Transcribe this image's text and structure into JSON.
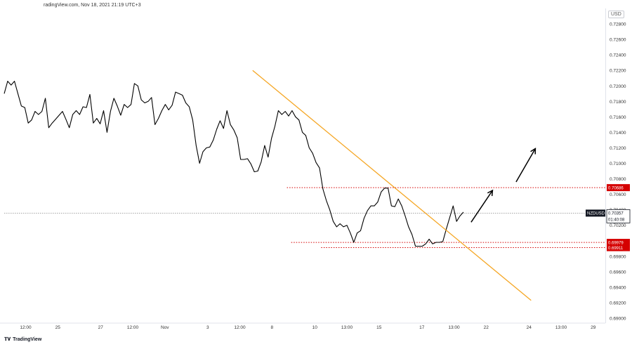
{
  "header": {
    "source_text": "radingView.com, Nov 18, 2021 21:19 UTC+3"
  },
  "footer": {
    "brand": "TradingView",
    "logo": "tradingview-logo-icon"
  },
  "chart_data": {
    "type": "line",
    "currency": "USD",
    "symbol_label": "NZDUSD",
    "current_price": "0.70357",
    "countdown": "01:40:08",
    "y_ticks": [
      0.728,
      0.726,
      0.724,
      0.722,
      0.72,
      0.718,
      0.716,
      0.714,
      0.712,
      0.71,
      0.708,
      0.706,
      0.704,
      0.702,
      0.7,
      0.698,
      0.696,
      0.694,
      0.692,
      0.69
    ],
    "ylim": [
      0.69,
      0.73
    ],
    "xlim": [
      0,
      140
    ],
    "x_ticks": [
      {
        "x": 5,
        "label": "12:00"
      },
      {
        "x": 12.5,
        "label": "25"
      },
      {
        "x": 22.5,
        "label": "27"
      },
      {
        "x": 30,
        "label": "12:00"
      },
      {
        "x": 37.5,
        "label": "Nov"
      },
      {
        "x": 47.5,
        "label": "3"
      },
      {
        "x": 55,
        "label": "12:00"
      },
      {
        "x": 62.5,
        "label": "8"
      },
      {
        "x": 72.5,
        "label": "10"
      },
      {
        "x": 80,
        "label": "13:00"
      },
      {
        "x": 87.5,
        "label": "15"
      },
      {
        "x": 97.5,
        "label": "17"
      },
      {
        "x": 105,
        "label": "13:00"
      },
      {
        "x": 112.5,
        "label": "22"
      },
      {
        "x": 122.5,
        "label": "24"
      },
      {
        "x": 130,
        "label": "13:00"
      },
      {
        "x": 137.5,
        "label": "29"
      }
    ],
    "series": [
      {
        "color": "#000000",
        "points": [
          [
            0.0,
            0.719
          ],
          [
            0.8,
            0.7206
          ],
          [
            1.6,
            0.7201
          ],
          [
            2.4,
            0.7206
          ],
          [
            3.2,
            0.719
          ],
          [
            4.0,
            0.7174
          ],
          [
            4.8,
            0.7172
          ],
          [
            5.6,
            0.7152
          ],
          [
            6.4,
            0.7156
          ],
          [
            7.2,
            0.7167
          ],
          [
            8.0,
            0.7163
          ],
          [
            8.8,
            0.7167
          ],
          [
            9.6,
            0.7184
          ],
          [
            10.4,
            0.7146
          ],
          [
            11.2,
            0.7152
          ],
          [
            12.0,
            0.7157
          ],
          [
            12.8,
            0.7162
          ],
          [
            13.6,
            0.7167
          ],
          [
            14.4,
            0.7157
          ],
          [
            15.2,
            0.7146
          ],
          [
            16.0,
            0.7163
          ],
          [
            16.8,
            0.7168
          ],
          [
            17.6,
            0.7163
          ],
          [
            18.4,
            0.7173
          ],
          [
            19.2,
            0.7172
          ],
          [
            20.0,
            0.7189
          ],
          [
            20.8,
            0.7152
          ],
          [
            21.6,
            0.7158
          ],
          [
            22.4,
            0.7151
          ],
          [
            23.2,
            0.7168
          ],
          [
            24.0,
            0.714
          ],
          [
            24.8,
            0.7167
          ],
          [
            25.6,
            0.7184
          ],
          [
            26.4,
            0.7174
          ],
          [
            27.2,
            0.7162
          ],
          [
            28.0,
            0.7176
          ],
          [
            28.8,
            0.7172
          ],
          [
            29.6,
            0.7176
          ],
          [
            30.4,
            0.7203
          ],
          [
            31.2,
            0.72
          ],
          [
            32.0,
            0.7182
          ],
          [
            32.8,
            0.7178
          ],
          [
            33.6,
            0.718
          ],
          [
            34.4,
            0.7185
          ],
          [
            35.2,
            0.715
          ],
          [
            36.0,
            0.7158
          ],
          [
            36.8,
            0.7168
          ],
          [
            37.6,
            0.7176
          ],
          [
            38.4,
            0.7169
          ],
          [
            39.2,
            0.7175
          ],
          [
            40.0,
            0.7192
          ],
          [
            40.8,
            0.719
          ],
          [
            41.6,
            0.7188
          ],
          [
            42.4,
            0.7178
          ],
          [
            43.2,
            0.7173
          ],
          [
            44.0,
            0.7156
          ],
          [
            44.8,
            0.7123
          ],
          [
            45.6,
            0.71
          ],
          [
            46.4,
            0.7115
          ],
          [
            47.2,
            0.712
          ],
          [
            48.0,
            0.7121
          ],
          [
            48.8,
            0.713
          ],
          [
            49.6,
            0.7144
          ],
          [
            50.4,
            0.7155
          ],
          [
            51.2,
            0.7145
          ],
          [
            52.0,
            0.7168
          ],
          [
            52.8,
            0.715
          ],
          [
            53.6,
            0.7143
          ],
          [
            54.4,
            0.7133
          ],
          [
            55.2,
            0.7105
          ],
          [
            56.0,
            0.7105
          ],
          [
            56.8,
            0.7106
          ],
          [
            57.6,
            0.7099
          ],
          [
            58.4,
            0.7089
          ],
          [
            59.2,
            0.709
          ],
          [
            60.0,
            0.7102
          ],
          [
            60.8,
            0.7123
          ],
          [
            61.6,
            0.7108
          ],
          [
            62.4,
            0.7132
          ],
          [
            63.2,
            0.7148
          ],
          [
            64.0,
            0.7168
          ],
          [
            64.8,
            0.7163
          ],
          [
            65.6,
            0.7167
          ],
          [
            66.4,
            0.7161
          ],
          [
            67.2,
            0.7168
          ],
          [
            68.0,
            0.716
          ],
          [
            68.8,
            0.7156
          ],
          [
            69.6,
            0.714
          ],
          [
            70.4,
            0.7136
          ],
          [
            71.2,
            0.712
          ],
          [
            72.0,
            0.7113
          ],
          [
            72.8,
            0.7101
          ],
          [
            73.6,
            0.7094
          ],
          [
            74.4,
            0.7067
          ],
          [
            75.2,
            0.7052
          ],
          [
            76.0,
            0.704
          ],
          [
            76.8,
            0.7025
          ],
          [
            77.6,
            0.7018
          ],
          [
            78.4,
            0.7022
          ],
          [
            79.2,
            0.7018
          ],
          [
            80.0,
            0.702
          ],
          [
            80.8,
            0.701
          ],
          [
            81.6,
            0.6998
          ],
          [
            82.4,
            0.701
          ],
          [
            83.2,
            0.7013
          ],
          [
            84.0,
            0.7029
          ],
          [
            84.8,
            0.7039
          ],
          [
            85.6,
            0.7045
          ],
          [
            86.4,
            0.7045
          ],
          [
            87.2,
            0.705
          ],
          [
            88.0,
            0.7063
          ],
          [
            88.8,
            0.7068
          ],
          [
            89.6,
            0.7068
          ],
          [
            90.4,
            0.7045
          ],
          [
            91.2,
            0.7044
          ],
          [
            92.0,
            0.7054
          ],
          [
            92.8,
            0.7045
          ],
          [
            93.6,
            0.7032
          ],
          [
            94.4,
            0.7018
          ],
          [
            95.2,
            0.7008
          ],
          [
            96.0,
            0.6993
          ],
          [
            96.8,
            0.6993
          ],
          [
            97.6,
            0.6993
          ],
          [
            98.4,
            0.6996
          ],
          [
            99.2,
            0.7002
          ],
          [
            100.0,
            0.6996
          ],
          [
            100.8,
            0.6998
          ],
          [
            101.6,
            0.6998
          ],
          [
            102.4,
            0.6999
          ],
          [
            103.2,
            0.7015
          ],
          [
            104.0,
            0.703
          ],
          [
            104.8,
            0.7045
          ],
          [
            105.6,
            0.7025
          ],
          [
            106.4,
            0.7032
          ],
          [
            107.2,
            0.7037
          ]
        ]
      }
    ],
    "annotations": {
      "trendline": {
        "color": "#f5a623",
        "from": [
          58.0,
          0.722
        ],
        "to": [
          123.0,
          0.6923
        ]
      },
      "levels": [
        {
          "value": 0.70686,
          "label": "0.70686",
          "color": "#d50000",
          "x_start": 66
        },
        {
          "value": 0.69979,
          "label": "0.69979",
          "color": "#d50000",
          "x_start": 67
        },
        {
          "value": 0.69911,
          "label": "0.69911",
          "color": "#d50000",
          "x_start": 74
        }
      ],
      "price_line": {
        "value": 0.70357,
        "color": "#888888"
      },
      "arrows": [
        {
          "from": [
            109.0,
            0.7024
          ],
          "to": [
            114.0,
            0.7065
          ]
        },
        {
          "from": [
            119.5,
            0.7076
          ],
          "to": [
            124.0,
            0.7119
          ]
        }
      ]
    }
  }
}
